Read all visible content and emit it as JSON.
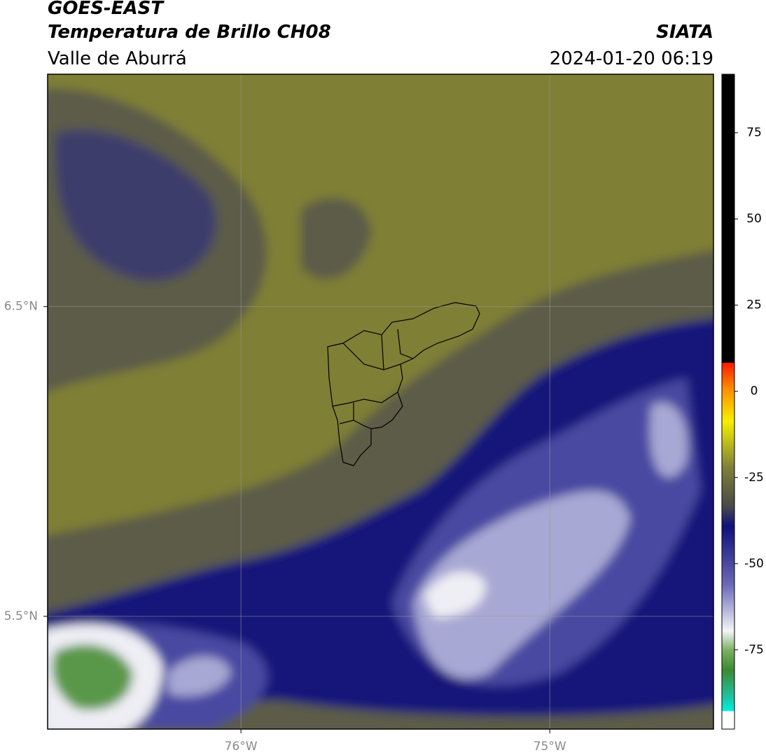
{
  "header": {
    "title": "GOES-EAST",
    "subtitle": "Temperatura de Brillo CH08",
    "region": "Valle de Aburrá",
    "source": "SIATA",
    "timestamp": "2024-01-20 06:19"
  },
  "map": {
    "xlim": [
      -76.626,
      -74.47
    ],
    "ylim": [
      5.136,
      7.25
    ],
    "xticks": [
      {
        "value": -76,
        "label": "76°W"
      },
      {
        "value": -75,
        "label": "75°W"
      }
    ],
    "yticks": [
      {
        "value": 6.5,
        "label": "6.5°N"
      },
      {
        "value": 5.5,
        "label": "5.5°N"
      }
    ],
    "grid": true
  },
  "colorbar": {
    "lim": [
      -98,
      92
    ],
    "ticks": [
      75,
      50,
      25,
      0,
      -25,
      -50,
      -75
    ]
  }
}
